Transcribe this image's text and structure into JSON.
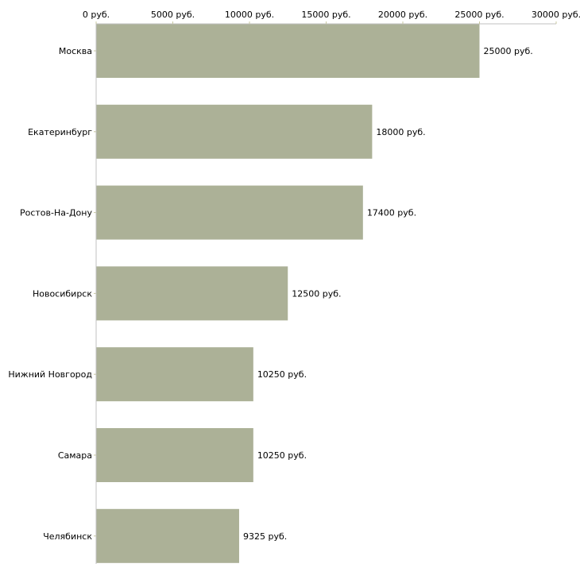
{
  "chart_data": {
    "type": "bar",
    "orientation": "horizontal",
    "title": "",
    "xlabel": "",
    "ylabel": "",
    "categories": [
      "Москва",
      "Екатеринбург",
      "Ростов-На-Дону",
      "Новосибирск",
      "Нижний Новгород",
      "Самара",
      "Челябинск"
    ],
    "values": [
      25000,
      18000,
      17400,
      12500,
      10250,
      10250,
      9325
    ],
    "value_labels": [
      "25000 руб.",
      "18000 руб.",
      "17400 руб.",
      "12500 руб.",
      "10250 руб.",
      "10250 руб.",
      "9325 руб."
    ],
    "xlim": [
      0,
      30000
    ],
    "x_ticks": [
      0,
      5000,
      10000,
      15000,
      20000,
      25000,
      30000
    ],
    "x_tick_labels": [
      "0 руб.",
      "5000 руб.",
      "10000 руб.",
      "15000 руб.",
      "20000 руб.",
      "25000 руб.",
      "30000 руб."
    ],
    "axis_position": "top",
    "grid": false,
    "bar_color": "#acb197"
  }
}
